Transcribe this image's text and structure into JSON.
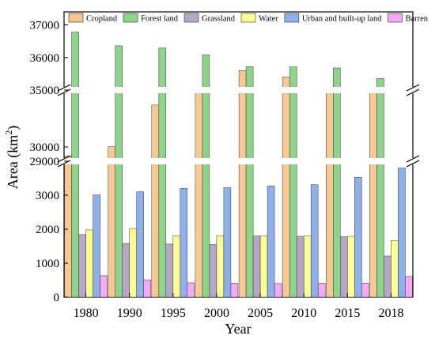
{
  "chart_data": {
    "type": "bar",
    "xlabel": "Year",
    "ylabel": "Area (km2)",
    "categories": [
      "1980",
      "1990",
      "1995",
      "2000",
      "2005",
      "2010",
      "2015",
      "2018"
    ],
    "series": [
      {
        "name": "Cropland",
        "color": "#f6c894",
        "values": [
          29380,
          30020,
          32950,
          34900,
          35600,
          35400,
          33800,
          34800
        ]
      },
      {
        "name": "Forest land",
        "color": "#8ed48b",
        "values": [
          36780,
          36360,
          36290,
          36080,
          35720,
          35710,
          35680,
          35360
        ]
      },
      {
        "name": "Grassland",
        "color": "#b4a7c9",
        "values": [
          1840,
          1580,
          1560,
          1550,
          1800,
          1790,
          1780,
          1210
        ]
      },
      {
        "name": "Water",
        "color": "#fdfd94",
        "values": [
          1980,
          2020,
          1810,
          1810,
          1800,
          1800,
          1790,
          1670
        ]
      },
      {
        "name": "Urban and built-up land",
        "color": "#8fb1ea",
        "values": [
          3010,
          3100,
          3200,
          3220,
          3270,
          3310,
          3530,
          3800
        ]
      },
      {
        "name": "Barren",
        "color": "#f6a9f6",
        "values": [
          630,
          510,
          420,
          410,
          400,
          410,
          410,
          610
        ]
      }
    ],
    "axis_segments": [
      {
        "range": [
          0,
          4000
        ],
        "ticks": [
          0,
          1000,
          2000,
          3000
        ]
      },
      {
        "range": [
          29000,
          34000
        ],
        "ticks": [
          29000,
          30000
        ]
      },
      {
        "range": [
          35000,
          37400
        ],
        "ticks": [
          35000,
          36000,
          37000
        ]
      }
    ],
    "legend_position": "top",
    "grid": false
  }
}
